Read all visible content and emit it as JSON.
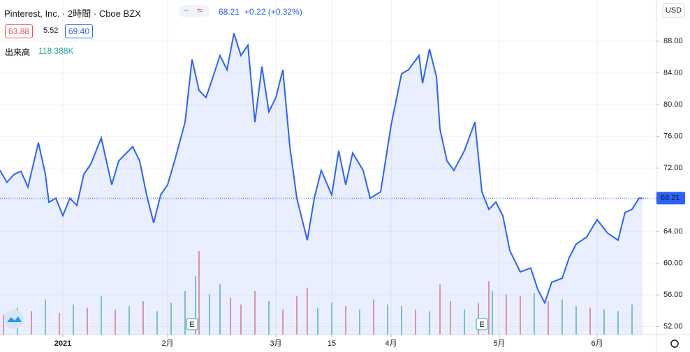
{
  "header": {
    "title": "Pinterest, Inc. · 2時間 · Cboe BZX",
    "price": "68.21",
    "change": "+0.22 (+0.32%)",
    "bid": "63.88",
    "spread": "5.52",
    "ask": "69.40",
    "volume_label": "出来高",
    "volume_value": "118.388K",
    "currency": "USD"
  },
  "chart_data": {
    "type": "area",
    "color": "#2962ff",
    "x": [
      0,
      2,
      4,
      6,
      8,
      11,
      13,
      14,
      16,
      18,
      20,
      22,
      24,
      26,
      29,
      32,
      34,
      38,
      40,
      42,
      44,
      46,
      48,
      50,
      53,
      55,
      57,
      59,
      61,
      63,
      65,
      67,
      69,
      71,
      73,
      75,
      77,
      79,
      81,
      83,
      85,
      88,
      90,
      92,
      95,
      97,
      99,
      101,
      104,
      106,
      109,
      112,
      115,
      117,
      120,
      121,
      123,
      125,
      126,
      128,
      130,
      133,
      136,
      138,
      140,
      142,
      144,
      146,
      149,
      152,
      154,
      156,
      158,
      161,
      163,
      165,
      168,
      171,
      174,
      177,
      179,
      181,
      183,
      184
    ],
    "values": [
      71.7,
      70.2,
      71.2,
      71.6,
      69.6,
      75.2,
      71.2,
      67.7,
      68.2,
      66.0,
      68.2,
      67.3,
      71.2,
      72.5,
      75.8,
      69.9,
      72.9,
      74.7,
      72.9,
      68.6,
      65.1,
      68.6,
      69.9,
      72.9,
      77.8,
      85.7,
      81.8,
      80.9,
      83.5,
      86.2,
      84.4,
      89.0,
      86.2,
      87.5,
      77.8,
      84.8,
      79.1,
      80.9,
      84.4,
      74.7,
      68.2,
      62.9,
      68.2,
      71.7,
      68.6,
      74.2,
      69.9,
      73.9,
      71.7,
      68.2,
      69.0,
      77.4,
      83.9,
      84.4,
      86.2,
      82.7,
      87.0,
      83.5,
      76.9,
      72.9,
      71.7,
      74.2,
      77.8,
      69.0,
      66.8,
      67.7,
      66.0,
      61.6,
      58.9,
      59.4,
      56.7,
      55.0,
      57.6,
      58.1,
      60.7,
      62.4,
      63.3,
      65.5,
      63.8,
      62.9,
      66.4,
      66.8,
      68.2,
      68.21
    ],
    "last_price": 68.21,
    "xlim": [
      0,
      188
    ],
    "ylim": [
      51.0,
      93.2
    ],
    "yticks": [
      {
        "value": 52,
        "label": "52.00"
      },
      {
        "value": 56,
        "label": "56.00"
      },
      {
        "value": 60,
        "label": "60.00"
      },
      {
        "value": 64,
        "label": "64.00"
      },
      {
        "value": 68,
        "label": "68.00"
      },
      {
        "value": 72,
        "label": "72.00"
      },
      {
        "value": 76,
        "label": "76.00"
      },
      {
        "value": 80,
        "label": "80.00"
      },
      {
        "value": 84,
        "label": "84.00"
      },
      {
        "value": 88,
        "label": "88.00"
      }
    ],
    "xticks": [
      {
        "value": 18,
        "label": "2021"
      },
      {
        "value": 48,
        "label": "2月"
      },
      {
        "value": 79,
        "label": "3月"
      },
      {
        "value": 95,
        "label": "15"
      },
      {
        "value": 112,
        "label": "4月"
      },
      {
        "value": 143,
        "label": "5月"
      },
      {
        "value": 171,
        "label": "6月"
      }
    ],
    "events": [
      {
        "x": 55,
        "label": "E"
      },
      {
        "x": 138,
        "label": "E"
      }
    ],
    "volume": {
      "vlim": [
        0,
        600
      ],
      "x": [
        1,
        5,
        9,
        13,
        17,
        21,
        25,
        29,
        33,
        37,
        41,
        45,
        49,
        53,
        56,
        57,
        60,
        63,
        66,
        69,
        73,
        77,
        81,
        85,
        88,
        91,
        95,
        99,
        103,
        107,
        111,
        115,
        119,
        123,
        126,
        129,
        133,
        137,
        140,
        141,
        145,
        149,
        153,
        157,
        161,
        165,
        169,
        173,
        177,
        181
      ],
      "values": [
        120,
        160,
        140,
        210,
        130,
        180,
        160,
        230,
        150,
        170,
        200,
        140,
        190,
        260,
        350,
        500,
        240,
        300,
        220,
        180,
        260,
        200,
        150,
        230,
        280,
        160,
        190,
        170,
        150,
        210,
        180,
        170,
        150,
        140,
        300,
        200,
        150,
        190,
        320,
        260,
        240,
        230,
        250,
        200,
        210,
        170,
        160,
        150,
        140,
        180
      ],
      "colors": [
        "#ef9a9a",
        "#80cbc4",
        "#ef9a9a",
        "#80cbc4",
        "#ef9a9a",
        "#80cbc4",
        "#ef9a9a",
        "#80cbc4",
        "#ef9a9a",
        "#80cbc4",
        "#ef9a9a",
        "#80cbc4",
        "#80cbc4",
        "#80cbc4",
        "#80cbc4",
        "#ef9a9a",
        "#80cbc4",
        "#80cbc4",
        "#ef9a9a",
        "#ef9a9a",
        "#ef9a9a",
        "#80cbc4",
        "#ef9a9a",
        "#ef9a9a",
        "#ef9a9a",
        "#80cbc4",
        "#80cbc4",
        "#ef9a9a",
        "#80cbc4",
        "#ef9a9a",
        "#80cbc4",
        "#80cbc4",
        "#ef9a9a",
        "#80cbc4",
        "#ef9a9a",
        "#ef9a9a",
        "#80cbc4",
        "#ef9a9a",
        "#ef9a9a",
        "#80cbc4",
        "#ef9a9a",
        "#ef9a9a",
        "#80cbc4",
        "#ef9a9a",
        "#80cbc4",
        "#80cbc4",
        "#ef9a9a",
        "#80cbc4",
        "#80cbc4",
        "#80cbc4"
      ]
    }
  }
}
